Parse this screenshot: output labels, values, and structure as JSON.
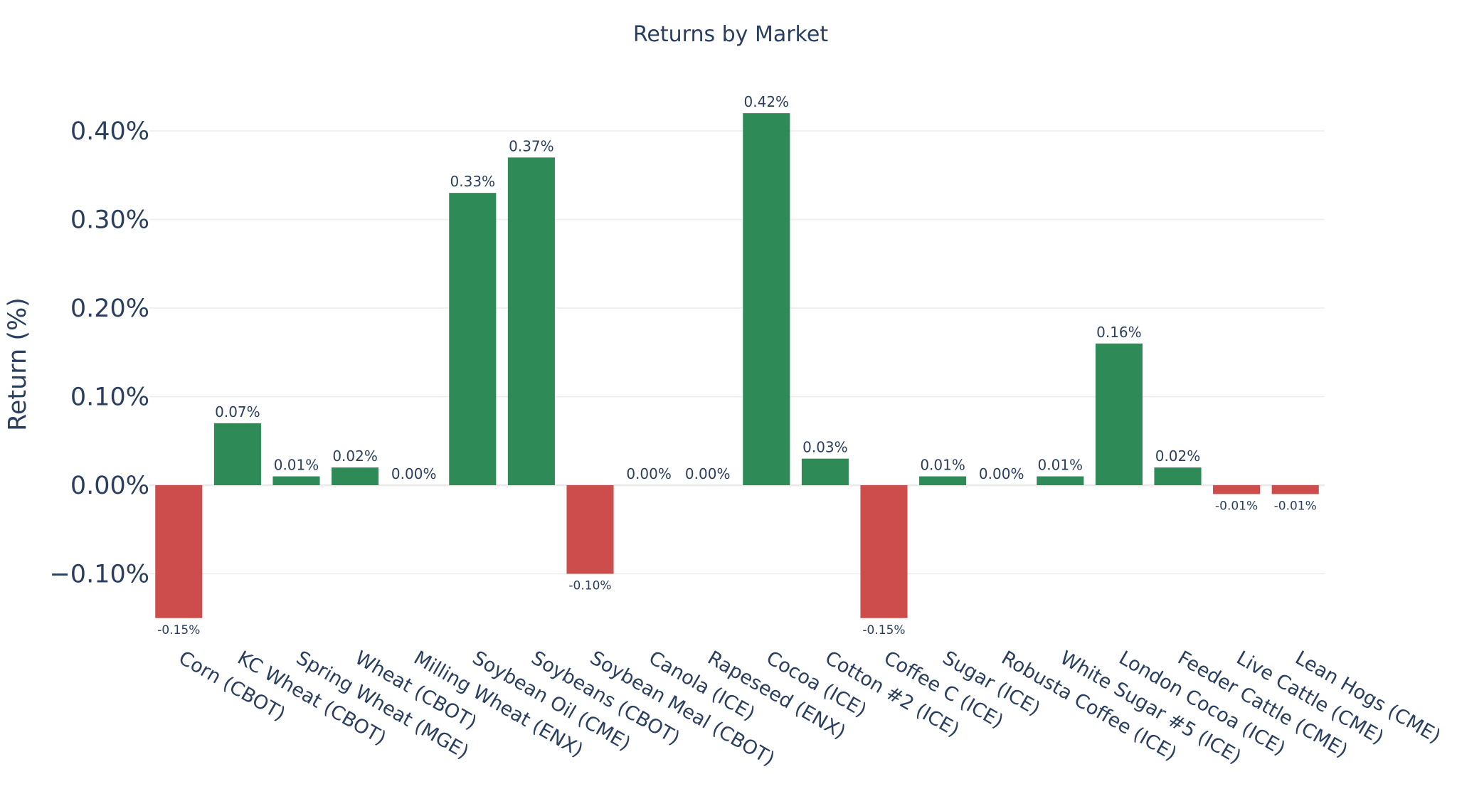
{
  "chart_data": {
    "type": "bar",
    "title": "Returns by Market",
    "xlabel": "",
    "ylabel": "Return (%)",
    "ylim": [
      -0.15,
      0.44
    ],
    "yticks": [
      -0.1,
      0,
      0.1,
      0.2,
      0.3,
      0.4
    ],
    "ytick_labels": [
      "−0.10%",
      "0.00%",
      "0.10%",
      "0.20%",
      "0.30%",
      "0.40%"
    ],
    "grid": true,
    "categories": [
      "Corn (CBOT)",
      "KC Wheat (CBOT)",
      "Spring Wheat (MGE)",
      "Wheat (CBOT)",
      "Milling Wheat (ENX)",
      "Soybean Oil (CME)",
      "Soybeans (CBOT)",
      "Soybean Meal (CBOT)",
      "Canola (ICE)",
      "Rapeseed (ENX)",
      "Cocoa (ICE)",
      "Cotton #2 (ICE)",
      "Coffee C (ICE)",
      "Sugar (ICE)",
      "Robusta Coffee (ICE)",
      "White Sugar #5 (ICE)",
      "London Cocoa (ICE)",
      "Feeder Cattle (CME)",
      "Live Cattle (CME)",
      "Lean Hogs (CME)"
    ],
    "values": [
      -0.15,
      0.07,
      0.01,
      0.02,
      0.0,
      0.33,
      0.37,
      -0.1,
      0.0,
      0.0,
      0.42,
      0.03,
      -0.15,
      0.01,
      0.0,
      0.01,
      0.16,
      0.02,
      -0.01,
      -0.01
    ],
    "data_labels": [
      "-0.15%",
      "0.07%",
      "0.01%",
      "0.02%",
      "0.00%",
      "0.33%",
      "0.37%",
      "-0.10%",
      "0.00%",
      "0.00%",
      "0.42%",
      "0.03%",
      "-0.15%",
      "0.01%",
      "0.00%",
      "0.01%",
      "0.16%",
      "0.02%",
      "-0.01%",
      "-0.01%"
    ],
    "colors": {
      "positive": "#2e8b57",
      "negative": "#cd4c4c",
      "text": "#2a3f5f",
      "grid": "#ebebeb"
    }
  }
}
